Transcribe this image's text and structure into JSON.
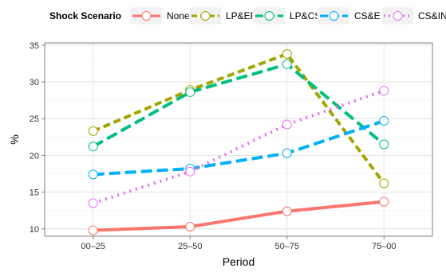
{
  "chart_data": {
    "type": "line",
    "title": "",
    "xlabel": "Period",
    "ylabel": "%",
    "categories": [
      "00–25",
      "25–50",
      "50–75",
      "75–00"
    ],
    "ylim": [
      9,
      35.3
    ],
    "yticks": [
      10,
      15,
      20,
      25,
      30,
      35
    ],
    "grid": true,
    "legend": {
      "title": "Shock Scenario",
      "placement": "top"
    },
    "series": [
      {
        "name": "None",
        "values": [
          9.8,
          10.3,
          12.4,
          13.7
        ],
        "color": "#F8766D",
        "dash": "solid"
      },
      {
        "name": "LP&EF",
        "values": [
          23.3,
          28.9,
          33.8,
          16.2
        ],
        "color": "#A3A500",
        "dash": "dashed"
      },
      {
        "name": "LP&CS",
        "values": [
          21.2,
          28.6,
          32.4,
          21.5
        ],
        "color": "#00BF7D",
        "dash": "longdash"
      },
      {
        "name": "CS&EF",
        "values": [
          17.4,
          18.2,
          20.3,
          24.7
        ],
        "color": "#00B0F6",
        "dash": "longdash"
      },
      {
        "name": "CS&IN",
        "values": [
          13.5,
          17.8,
          24.2,
          28.8
        ],
        "color": "#E76BF3",
        "dash": "dotted"
      }
    ]
  }
}
